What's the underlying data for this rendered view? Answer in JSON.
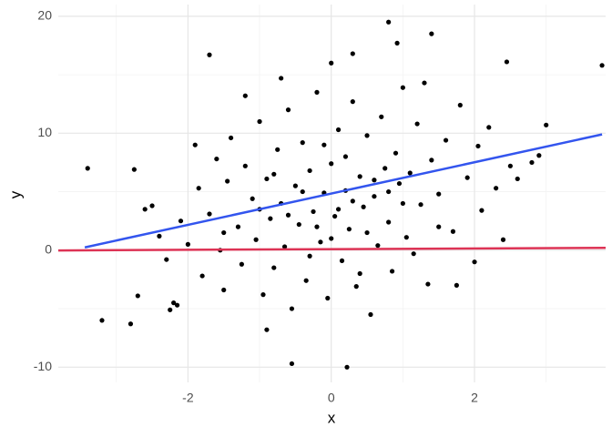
{
  "chart_data": {
    "type": "scatter",
    "xlabel": "x",
    "ylabel": "y",
    "xlim": [
      -3.81,
      3.83
    ],
    "ylim": [
      -11.3,
      21.0
    ],
    "xticks": [
      -2,
      0,
      2
    ],
    "yticks": [
      -10,
      0,
      10,
      20
    ],
    "x_minor_ticks": [
      -3,
      -1,
      1,
      3
    ],
    "y_minor_ticks": [
      -5,
      5,
      15
    ],
    "grid": true,
    "point_color": "#000000",
    "points": [
      [
        -3.4,
        7
      ],
      [
        -3.2,
        -6
      ],
      [
        -2.8,
        -6.3
      ],
      [
        -2.75,
        6.9
      ],
      [
        -2.7,
        -3.9
      ],
      [
        -2.2,
        -4.5
      ],
      [
        -2.25,
        -5.1
      ],
      [
        -2.15,
        -4.7
      ],
      [
        -1.7,
        16.7
      ],
      [
        -0.9,
        -6.8
      ],
      [
        -0.55,
        -9.7
      ],
      [
        0.22,
        -10
      ],
      [
        0.8,
        19.5
      ],
      [
        0.92,
        17.7
      ],
      [
        1.4,
        18.5
      ],
      [
        2.45,
        16.1
      ],
      [
        3.78,
        15.8
      ],
      [
        3.0,
        10.7
      ],
      [
        2.9,
        8.1
      ],
      [
        -0.7,
        14.7
      ],
      [
        -1.2,
        13.2
      ],
      [
        0.0,
        16
      ],
      [
        0.3,
        16.8
      ],
      [
        -2.5,
        3.8
      ],
      [
        -2.4,
        1.2
      ],
      [
        -2.3,
        -0.8
      ],
      [
        -2.1,
        2.5
      ],
      [
        -2.0,
        0.5
      ],
      [
        -1.9,
        9.0
      ],
      [
        -1.85,
        5.3
      ],
      [
        -1.8,
        -2.2
      ],
      [
        -1.7,
        3.1
      ],
      [
        -1.6,
        7.8
      ],
      [
        -1.55,
        0.0
      ],
      [
        -1.5,
        -3.4
      ],
      [
        -1.45,
        5.9
      ],
      [
        -1.4,
        9.6
      ],
      [
        -1.3,
        2.0
      ],
      [
        -1.25,
        -1.2
      ],
      [
        -1.2,
        7.2
      ],
      [
        -1.1,
        4.4
      ],
      [
        -1.05,
        0.9
      ],
      [
        -1.0,
        11.0
      ],
      [
        -0.95,
        -3.8
      ],
      [
        -0.9,
        6.1
      ],
      [
        -0.85,
        2.7
      ],
      [
        -0.8,
        -1.5
      ],
      [
        -0.75,
        8.6
      ],
      [
        -0.7,
        4.0
      ],
      [
        -0.65,
        0.3
      ],
      [
        -0.6,
        12.0
      ],
      [
        -0.55,
        -5.0
      ],
      [
        -0.5,
        5.5
      ],
      [
        -0.45,
        2.2
      ],
      [
        -0.4,
        9.2
      ],
      [
        -0.35,
        -2.6
      ],
      [
        -0.3,
        6.8
      ],
      [
        -0.25,
        3.3
      ],
      [
        -0.2,
        13.5
      ],
      [
        -0.15,
        0.7
      ],
      [
        -0.1,
        4.9
      ],
      [
        -0.05,
        -4.1
      ],
      [
        0.0,
        7.4
      ],
      [
        0.05,
        2.9
      ],
      [
        0.1,
        10.3
      ],
      [
        0.15,
        -0.9
      ],
      [
        0.2,
        5.1
      ],
      [
        0.25,
        1.8
      ],
      [
        0.3,
        12.7
      ],
      [
        0.35,
        -3.1
      ],
      [
        0.4,
        6.3
      ],
      [
        0.45,
        3.7
      ],
      [
        0.5,
        9.8
      ],
      [
        0.55,
        -5.5
      ],
      [
        0.6,
        4.6
      ],
      [
        0.65,
        0.4
      ],
      [
        0.7,
        11.4
      ],
      [
        0.75,
        7.0
      ],
      [
        0.8,
        2.4
      ],
      [
        0.85,
        -1.8
      ],
      [
        0.9,
        8.3
      ],
      [
        0.95,
        5.7
      ],
      [
        1.0,
        13.9
      ],
      [
        1.05,
        1.1
      ],
      [
        1.1,
        6.6
      ],
      [
        1.15,
        -0.3
      ],
      [
        1.2,
        10.8
      ],
      [
        1.25,
        3.9
      ],
      [
        1.3,
        14.3
      ],
      [
        1.35,
        -2.9
      ],
      [
        1.4,
        7.7
      ],
      [
        1.5,
        4.8
      ],
      [
        1.6,
        9.4
      ],
      [
        1.7,
        1.6
      ],
      [
        1.8,
        12.4
      ],
      [
        1.9,
        6.2
      ],
      [
        2.0,
        -1.0
      ],
      [
        2.05,
        8.9
      ],
      [
        2.1,
        3.4
      ],
      [
        2.2,
        10.5
      ],
      [
        2.3,
        5.3
      ],
      [
        2.4,
        0.9
      ],
      [
        2.5,
        7.2
      ],
      [
        2.6,
        6.1
      ],
      [
        1.75,
        -3.0
      ],
      [
        -0.6,
        3.0
      ],
      [
        0.1,
        3.5
      ],
      [
        -0.2,
        2.0
      ],
      [
        0.3,
        4.2
      ],
      [
        -0.4,
        5.0
      ],
      [
        0.6,
        6.0
      ],
      [
        -1.0,
        3.5
      ],
      [
        1.0,
        4.0
      ],
      [
        0.0,
        1.0
      ],
      [
        0.2,
        8.0
      ],
      [
        -0.3,
        -0.5
      ],
      [
        0.5,
        1.5
      ],
      [
        -0.8,
        6.5
      ],
      [
        0.8,
        5.0
      ],
      [
        -1.5,
        1.5
      ],
      [
        1.5,
        2.0
      ],
      [
        -0.1,
        9.0
      ],
      [
        0.4,
        -2.0
      ],
      [
        -2.6,
        3.5
      ],
      [
        2.8,
        7.5
      ]
    ],
    "lines": [
      {
        "color": "#3355ee",
        "x": [
          -3.44,
          3.78
        ],
        "values": [
          0.24,
          9.9
        ]
      },
      {
        "color": "#dd3355",
        "x": [
          -3.81,
          3.83
        ],
        "values": [
          -0.02,
          0.2
        ]
      }
    ]
  }
}
